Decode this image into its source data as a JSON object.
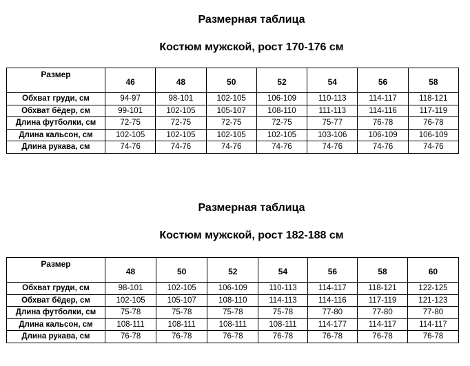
{
  "tables": [
    {
      "title": "Размерная таблица",
      "subtitle": "Костюм мужской, рост 170-176 см",
      "header_label": "Размер",
      "sizes": [
        "46",
        "48",
        "50",
        "52",
        "54",
        "56",
        "58"
      ],
      "rows": [
        {
          "label": "Обхват груди, см",
          "values": [
            "94-97",
            "98-101",
            "102-105",
            "106-109",
            "110-113",
            "114-117",
            "118-121"
          ]
        },
        {
          "label": "Обхват бёдер, см",
          "values": [
            "99-101",
            "102-105",
            "105-107",
            "108-110",
            "111-113",
            "114-116",
            "117-119"
          ]
        },
        {
          "label": "Длина футболки, см",
          "values": [
            "72-75",
            "72-75",
            "72-75",
            "72-75",
            "75-77",
            "76-78",
            "76-78"
          ]
        },
        {
          "label": "Длина кальсон, см",
          "values": [
            "102-105",
            "102-105",
            "102-105",
            "102-105",
            "103-106",
            "106-109",
            "106-109"
          ]
        },
        {
          "label": "Длина рукава, см",
          "values": [
            "74-76",
            "74-76",
            "74-76",
            "74-76",
            "74-76",
            "74-76",
            "74-76"
          ]
        }
      ]
    },
    {
      "title": "Размерная таблица",
      "subtitle": "Костюм мужской, рост 182-188 см",
      "header_label": "Размер",
      "sizes": [
        "48",
        "50",
        "52",
        "54",
        "56",
        "58",
        "60"
      ],
      "rows": [
        {
          "label": "Обхват груди, см",
          "values": [
            "98-101",
            "102-105",
            "106-109",
            "110-113",
            "114-117",
            "118-121",
            "122-125"
          ]
        },
        {
          "label": "Обхват бёдер, см",
          "values": [
            "102-105",
            "105-107",
            "108-110",
            "114-113",
            "114-116",
            "117-119",
            "121-123"
          ]
        },
        {
          "label": "Длина футболки, см",
          "values": [
            "75-78",
            "75-78",
            "75-78",
            "75-78",
            "77-80",
            "77-80",
            "77-80"
          ]
        },
        {
          "label": "Длина кальсон, см",
          "values": [
            "108-111",
            "108-111",
            "108-111",
            "108-111",
            "114-177",
            "114-117",
            "114-117"
          ]
        },
        {
          "label": "Длина рукава, см",
          "values": [
            "76-78",
            "76-78",
            "76-78",
            "76-78",
            "76-78",
            "76-78",
            "76-78"
          ]
        }
      ]
    }
  ]
}
